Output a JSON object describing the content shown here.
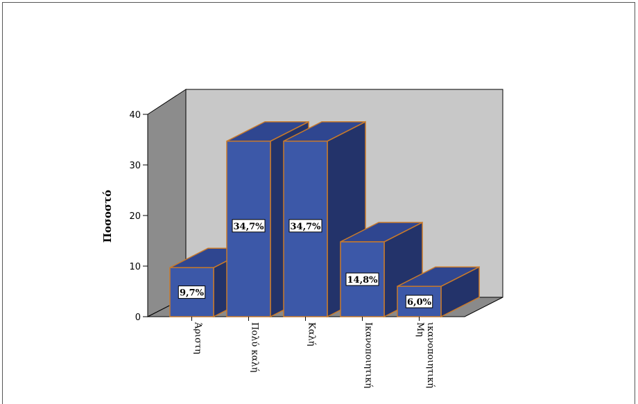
{
  "chart_data": {
    "type": "bar",
    "title": "",
    "xlabel": "",
    "ylabel": "Ποσοστό",
    "ylim": [
      0,
      40
    ],
    "yticks": [
      0,
      10,
      20,
      30,
      40
    ],
    "categories": [
      [
        "Άριστη"
      ],
      [
        "Πολύ καλή"
      ],
      [
        "Καλή"
      ],
      [
        "Ικανοποιητική"
      ],
      [
        "Μη",
        "ικανοποιητική"
      ]
    ],
    "values": [
      9.7,
      34.7,
      34.7,
      14.8,
      6.0
    ],
    "data_labels": [
      "9,7%",
      "34,7%",
      "34,7%",
      "14,8%",
      "6,0%"
    ],
    "style": "3d-bar",
    "colors": {
      "bar_front": "#3c58a8",
      "bar_side": "#23336a",
      "bar_top": "#2f4690",
      "bar_edge": "#c97a2a",
      "back_wall": "#c8c8c8",
      "side_wall": "#8c8c8c",
      "floor": "#8a8a8a"
    }
  }
}
